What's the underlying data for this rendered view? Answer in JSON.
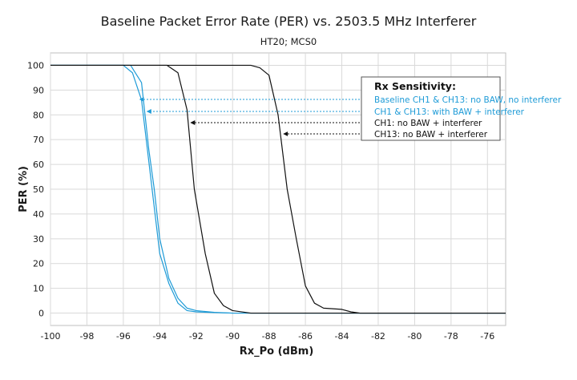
{
  "chart_data": {
    "type": "line",
    "title": "Baseline Packet Error Rate (PER) vs. 2503.5 MHz Interferer",
    "subtitle": "HT20; MCS0",
    "xlabel": "Rx_Po (dBm)",
    "ylabel": "PER (%)",
    "xlim": [
      -100,
      -75
    ],
    "ylim": [
      -5,
      105
    ],
    "x_ticks": [
      -100,
      -98,
      -96,
      -94,
      -92,
      -90,
      -88,
      -86,
      -84,
      -82,
      -80,
      -78,
      -76
    ],
    "y_ticks": [
      0,
      10,
      20,
      30,
      40,
      50,
      60,
      70,
      80,
      90,
      100
    ],
    "grid": true,
    "legend": {
      "title": "Rx Sensitivity:",
      "placement": "top-right"
    },
    "series": [
      {
        "name": "Baseline CH1 & CH13: no BAW, no interferer",
        "color": "#1e9bd7",
        "dashed_pointer": true,
        "x": [
          -100,
          -96,
          -95.5,
          -95,
          -94.5,
          -94,
          -93.5,
          -93,
          -92.5,
          -92,
          -91,
          -90,
          -75
        ],
        "y": [
          100,
          100,
          97,
          86,
          55,
          24,
          12,
          4,
          1,
          0.5,
          0.2,
          0,
          0
        ]
      },
      {
        "name": "CH1 & CH13: with BAW + interferer",
        "color": "#1e9bd7",
        "dashed_pointer": true,
        "x": [
          -100,
          -95.6,
          -95,
          -94.6,
          -94.3,
          -94,
          -93.5,
          -93,
          -92.5,
          -92,
          -91,
          -90,
          -75
        ],
        "y": [
          100,
          100,
          93,
          66,
          50,
          30,
          14,
          6,
          2,
          1,
          0.3,
          0,
          0
        ]
      },
      {
        "name": "CH1: no BAW + interferer",
        "color": "#111111",
        "dashed_pointer": true,
        "x": [
          -100,
          -93.6,
          -93,
          -92.5,
          -92.1,
          -91.5,
          -91,
          -90.5,
          -90,
          -89,
          -75
        ],
        "y": [
          100,
          100,
          97,
          82,
          50,
          24,
          8,
          3,
          1,
          0,
          0
        ]
      },
      {
        "name": "CH13: no BAW + interferer",
        "color": "#111111",
        "dashed_pointer": true,
        "x": [
          -100,
          -89,
          -88.5,
          -88,
          -87.5,
          -87,
          -86.5,
          -86,
          -85.5,
          -85,
          -84,
          -83.5,
          -83,
          -75
        ],
        "y": [
          100,
          100,
          99,
          96,
          80,
          50,
          30,
          11,
          4,
          2,
          1.5,
          0.5,
          0,
          0
        ]
      }
    ]
  }
}
